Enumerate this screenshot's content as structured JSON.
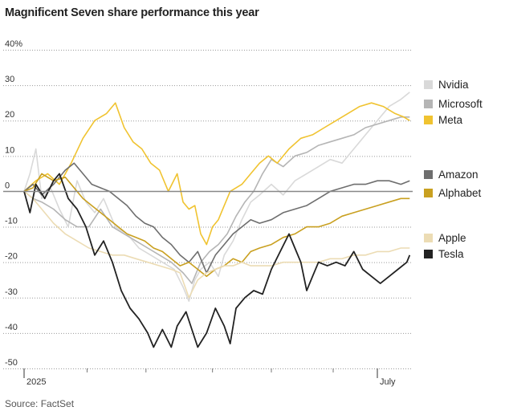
{
  "chart_data": {
    "type": "line",
    "title": "Magnificent Seven share performance this year",
    "source": "Source: FactSet",
    "xlabel": "",
    "ylabel": "",
    "ylim": [
      -50,
      40
    ],
    "y_ticks": [
      {
        "value": 40,
        "label": "40%"
      },
      {
        "value": 30,
        "label": "30"
      },
      {
        "value": 20,
        "label": "20"
      },
      {
        "value": 10,
        "label": "10"
      },
      {
        "value": 0,
        "label": "0"
      },
      {
        "value": -10,
        "label": "-10"
      },
      {
        "value": -20,
        "label": "-20"
      },
      {
        "value": -30,
        "label": "-30"
      },
      {
        "value": -40,
        "label": "-40"
      },
      {
        "value": -50,
        "label": "-50"
      }
    ],
    "x_tick_labels": [
      {
        "x": 0,
        "label": "2025"
      },
      {
        "x": 6,
        "label": "July"
      }
    ],
    "x_range": [
      0,
      6.6
    ],
    "series": [
      {
        "name": "Nvidia",
        "color": "#d9d9d9",
        "legend_value": 28,
        "points": [
          [
            0,
            0
          ],
          [
            0.1,
            5
          ],
          [
            0.2,
            12
          ],
          [
            0.3,
            -2
          ],
          [
            0.45,
            1
          ],
          [
            0.6,
            -5
          ],
          [
            0.75,
            -10
          ],
          [
            0.9,
            3
          ],
          [
            1.05,
            -3
          ],
          [
            1.2,
            -6
          ],
          [
            1.35,
            -2
          ],
          [
            1.55,
            -10
          ],
          [
            1.75,
            -12
          ],
          [
            1.95,
            -16
          ],
          [
            2.15,
            -18
          ],
          [
            2.35,
            -20
          ],
          [
            2.55,
            -22
          ],
          [
            2.7,
            -27
          ],
          [
            2.8,
            -31
          ],
          [
            2.9,
            -25
          ],
          [
            3.0,
            -22
          ],
          [
            3.15,
            -20
          ],
          [
            3.3,
            -24
          ],
          [
            3.4,
            -18
          ],
          [
            3.55,
            -14
          ],
          [
            3.7,
            -8
          ],
          [
            3.85,
            -3
          ],
          [
            4.0,
            -1
          ],
          [
            4.2,
            2
          ],
          [
            4.4,
            -1
          ],
          [
            4.6,
            3
          ],
          [
            4.8,
            5
          ],
          [
            5.0,
            7
          ],
          [
            5.2,
            9
          ],
          [
            5.4,
            8
          ],
          [
            5.6,
            12
          ],
          [
            5.8,
            16
          ],
          [
            6.0,
            20
          ],
          [
            6.2,
            24
          ],
          [
            6.4,
            26
          ],
          [
            6.55,
            28
          ]
        ]
      },
      {
        "name": "Microsoft",
        "color": "#b5b5b5",
        "legend_value": 21,
        "points": [
          [
            0,
            0
          ],
          [
            0.15,
            -2
          ],
          [
            0.3,
            -3
          ],
          [
            0.5,
            -5
          ],
          [
            0.7,
            -8
          ],
          [
            0.9,
            -10
          ],
          [
            1.1,
            -10
          ],
          [
            1.3,
            -5
          ],
          [
            1.5,
            -10
          ],
          [
            1.7,
            -12
          ],
          [
            1.9,
            -14
          ],
          [
            2.1,
            -16
          ],
          [
            2.3,
            -18
          ],
          [
            2.5,
            -20
          ],
          [
            2.7,
            -23
          ],
          [
            2.85,
            -26
          ],
          [
            3.0,
            -20
          ],
          [
            3.15,
            -17
          ],
          [
            3.3,
            -15
          ],
          [
            3.45,
            -12
          ],
          [
            3.6,
            -7
          ],
          [
            3.75,
            -3
          ],
          [
            3.9,
            0
          ],
          [
            4.05,
            5
          ],
          [
            4.2,
            9
          ],
          [
            4.4,
            7
          ],
          [
            4.6,
            10
          ],
          [
            4.8,
            11
          ],
          [
            5.0,
            13
          ],
          [
            5.2,
            14
          ],
          [
            5.4,
            15
          ],
          [
            5.6,
            16
          ],
          [
            5.8,
            18
          ],
          [
            6.0,
            19
          ],
          [
            6.2,
            20
          ],
          [
            6.4,
            21
          ],
          [
            6.55,
            21
          ]
        ]
      },
      {
        "name": "Meta",
        "color": "#f0c330",
        "legend_value": 20,
        "points": [
          [
            0,
            0
          ],
          [
            0.2,
            3
          ],
          [
            0.4,
            5
          ],
          [
            0.6,
            2
          ],
          [
            0.8,
            8
          ],
          [
            1.0,
            15
          ],
          [
            1.2,
            20
          ],
          [
            1.4,
            22
          ],
          [
            1.55,
            25
          ],
          [
            1.7,
            18
          ],
          [
            1.85,
            14
          ],
          [
            2.0,
            12
          ],
          [
            2.15,
            8
          ],
          [
            2.3,
            6
          ],
          [
            2.45,
            0
          ],
          [
            2.6,
            5
          ],
          [
            2.7,
            -3
          ],
          [
            2.8,
            -5
          ],
          [
            2.9,
            -4
          ],
          [
            3.0,
            -12
          ],
          [
            3.1,
            -15
          ],
          [
            3.2,
            -10
          ],
          [
            3.3,
            -8
          ],
          [
            3.4,
            -4
          ],
          [
            3.5,
            0
          ],
          [
            3.7,
            2
          ],
          [
            3.85,
            5
          ],
          [
            4.0,
            8
          ],
          [
            4.15,
            10
          ],
          [
            4.3,
            8
          ],
          [
            4.5,
            12
          ],
          [
            4.7,
            15
          ],
          [
            4.9,
            16
          ],
          [
            5.1,
            18
          ],
          [
            5.3,
            20
          ],
          [
            5.5,
            22
          ],
          [
            5.7,
            24
          ],
          [
            5.9,
            25
          ],
          [
            6.1,
            24
          ],
          [
            6.3,
            22
          ],
          [
            6.45,
            21
          ],
          [
            6.55,
            20
          ]
        ]
      },
      {
        "name": "Amazon",
        "color": "#6e6e6e",
        "legend_value": 3,
        "points": [
          [
            0,
            0
          ],
          [
            0.15,
            2
          ],
          [
            0.3,
            -1
          ],
          [
            0.5,
            2
          ],
          [
            0.7,
            6
          ],
          [
            0.85,
            8
          ],
          [
            1.0,
            5
          ],
          [
            1.15,
            2
          ],
          [
            1.3,
            1
          ],
          [
            1.45,
            0
          ],
          [
            1.6,
            -2
          ],
          [
            1.75,
            -4
          ],
          [
            1.9,
            -7
          ],
          [
            2.05,
            -9
          ],
          [
            2.2,
            -10
          ],
          [
            2.35,
            -13
          ],
          [
            2.5,
            -15
          ],
          [
            2.65,
            -18
          ],
          [
            2.8,
            -20
          ],
          [
            2.95,
            -17
          ],
          [
            3.1,
            -23
          ],
          [
            3.25,
            -18
          ],
          [
            3.4,
            -15
          ],
          [
            3.55,
            -12
          ],
          [
            3.7,
            -10
          ],
          [
            3.85,
            -8
          ],
          [
            4.0,
            -9
          ],
          [
            4.2,
            -8
          ],
          [
            4.4,
            -6
          ],
          [
            4.6,
            -5
          ],
          [
            4.8,
            -4
          ],
          [
            5.0,
            -2
          ],
          [
            5.2,
            0
          ],
          [
            5.4,
            1
          ],
          [
            5.6,
            2
          ],
          [
            5.8,
            2
          ],
          [
            6.0,
            3
          ],
          [
            6.2,
            3
          ],
          [
            6.4,
            2
          ],
          [
            6.55,
            3
          ]
        ]
      },
      {
        "name": "Alphabet",
        "color": "#c9a020",
        "legend_value": -2,
        "points": [
          [
            0,
            0
          ],
          [
            0.15,
            1
          ],
          [
            0.3,
            5
          ],
          [
            0.5,
            3
          ],
          [
            0.7,
            4
          ],
          [
            0.85,
            1
          ],
          [
            1.0,
            -2
          ],
          [
            1.15,
            -4
          ],
          [
            1.3,
            -6
          ],
          [
            1.45,
            -8
          ],
          [
            1.6,
            -10
          ],
          [
            1.75,
            -12
          ],
          [
            1.9,
            -13
          ],
          [
            2.05,
            -14
          ],
          [
            2.2,
            -16
          ],
          [
            2.35,
            -17
          ],
          [
            2.5,
            -19
          ],
          [
            2.65,
            -21
          ],
          [
            2.8,
            -20
          ],
          [
            2.95,
            -22
          ],
          [
            3.1,
            -24
          ],
          [
            3.25,
            -22
          ],
          [
            3.4,
            -21
          ],
          [
            3.55,
            -19
          ],
          [
            3.7,
            -20
          ],
          [
            3.85,
            -17
          ],
          [
            4.0,
            -16
          ],
          [
            4.2,
            -15
          ],
          [
            4.4,
            -13
          ],
          [
            4.6,
            -12
          ],
          [
            4.8,
            -10
          ],
          [
            5.0,
            -10
          ],
          [
            5.2,
            -9
          ],
          [
            5.4,
            -7
          ],
          [
            5.6,
            -6
          ],
          [
            5.8,
            -5
          ],
          [
            6.0,
            -4
          ],
          [
            6.2,
            -3
          ],
          [
            6.4,
            -2
          ],
          [
            6.55,
            -2
          ]
        ]
      },
      {
        "name": "Apple",
        "color": "#ecdcb4",
        "legend_value": -16,
        "points": [
          [
            0,
            0
          ],
          [
            0.15,
            -2
          ],
          [
            0.3,
            -5
          ],
          [
            0.5,
            -9
          ],
          [
            0.7,
            -12
          ],
          [
            0.9,
            -14
          ],
          [
            1.1,
            -16
          ],
          [
            1.3,
            -17
          ],
          [
            1.5,
            -18
          ],
          [
            1.7,
            -18
          ],
          [
            1.9,
            -19
          ],
          [
            2.1,
            -20
          ],
          [
            2.3,
            -21
          ],
          [
            2.5,
            -22
          ],
          [
            2.65,
            -23
          ],
          [
            2.8,
            -30
          ],
          [
            2.95,
            -25
          ],
          [
            3.1,
            -23
          ],
          [
            3.25,
            -22
          ],
          [
            3.4,
            -21
          ],
          [
            3.55,
            -21
          ],
          [
            3.7,
            -20
          ],
          [
            3.85,
            -21
          ],
          [
            4.0,
            -21
          ],
          [
            4.2,
            -21
          ],
          [
            4.4,
            -20
          ],
          [
            4.6,
            -20
          ],
          [
            4.8,
            -20
          ],
          [
            5.0,
            -20
          ],
          [
            5.2,
            -19
          ],
          [
            5.4,
            -19
          ],
          [
            5.6,
            -18
          ],
          [
            5.8,
            -18
          ],
          [
            6.0,
            -17
          ],
          [
            6.2,
            -17
          ],
          [
            6.4,
            -16
          ],
          [
            6.55,
            -16
          ]
        ]
      },
      {
        "name": "Tesla",
        "color": "#222222",
        "legend_value": -18,
        "points": [
          [
            0,
            0
          ],
          [
            0.1,
            -6
          ],
          [
            0.2,
            2
          ],
          [
            0.35,
            -2
          ],
          [
            0.5,
            3
          ],
          [
            0.6,
            5
          ],
          [
            0.75,
            -2
          ],
          [
            0.9,
            -5
          ],
          [
            1.05,
            -10
          ],
          [
            1.2,
            -18
          ],
          [
            1.35,
            -14
          ],
          [
            1.5,
            -20
          ],
          [
            1.65,
            -28
          ],
          [
            1.8,
            -33
          ],
          [
            1.95,
            -36
          ],
          [
            2.1,
            -40
          ],
          [
            2.2,
            -44
          ],
          [
            2.35,
            -39
          ],
          [
            2.5,
            -44
          ],
          [
            2.6,
            -38
          ],
          [
            2.75,
            -34
          ],
          [
            2.85,
            -39
          ],
          [
            2.95,
            -44
          ],
          [
            3.1,
            -40
          ],
          [
            3.25,
            -33
          ],
          [
            3.4,
            -38
          ],
          [
            3.5,
            -43
          ],
          [
            3.6,
            -33
          ],
          [
            3.75,
            -30
          ],
          [
            3.9,
            -28
          ],
          [
            4.05,
            -29
          ],
          [
            4.2,
            -22
          ],
          [
            4.35,
            -17
          ],
          [
            4.5,
            -12
          ],
          [
            4.6,
            -16
          ],
          [
            4.7,
            -20
          ],
          [
            4.8,
            -28
          ],
          [
            4.9,
            -24
          ],
          [
            5.0,
            -20
          ],
          [
            5.15,
            -21
          ],
          [
            5.3,
            -20
          ],
          [
            5.45,
            -21
          ],
          [
            5.6,
            -17
          ],
          [
            5.75,
            -22
          ],
          [
            5.9,
            -24
          ],
          [
            6.05,
            -26
          ],
          [
            6.2,
            -24
          ],
          [
            6.35,
            -22
          ],
          [
            6.5,
            -20
          ],
          [
            6.55,
            -18
          ]
        ]
      }
    ],
    "legend": [
      "Nvidia",
      "Microsoft",
      "Meta",
      "Amazon",
      "Alphabet",
      "Apple",
      "Tesla"
    ]
  }
}
